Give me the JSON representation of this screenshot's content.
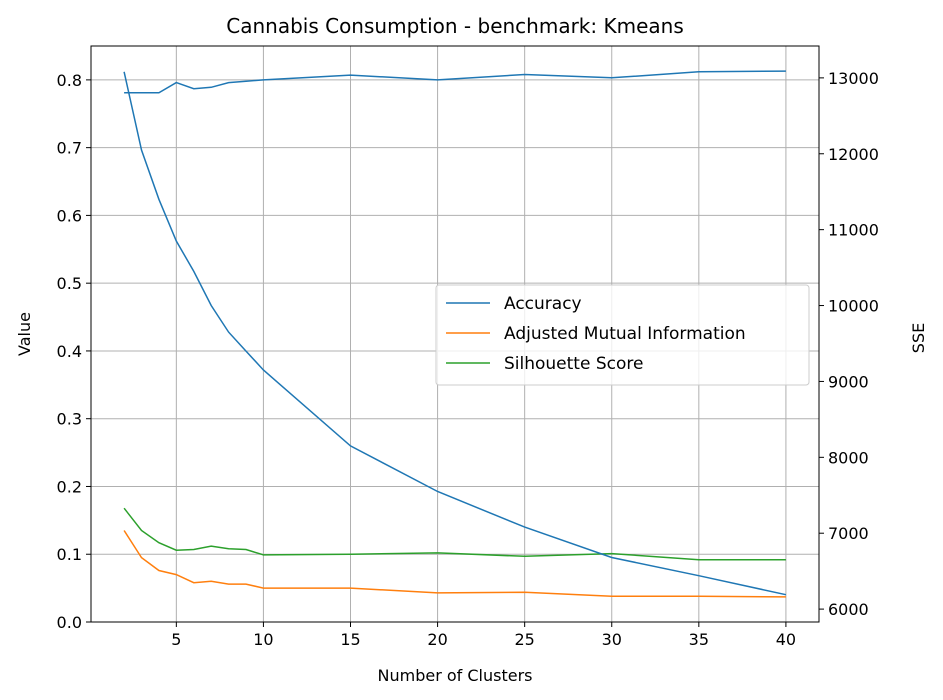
{
  "chart_data": {
    "type": "line",
    "title": "Cannabis Consumption - benchmark: Kmeans",
    "xlabel": "Number of Clusters",
    "ylabel": "Value",
    "y2label": "SSE",
    "xlim": [
      0.1,
      41.9
    ],
    "ylim": [
      0,
      0.85
    ],
    "y2lim": [
      5830,
      13420
    ],
    "x_ticks": [
      5,
      10,
      15,
      20,
      25,
      30,
      35,
      40
    ],
    "y_ticks": [
      0.0,
      0.1,
      0.2,
      0.3,
      0.4,
      0.5,
      0.6,
      0.7,
      0.8
    ],
    "y_tick_labels": [
      "0.0",
      "0.1",
      "0.2",
      "0.3",
      "0.4",
      "0.5",
      "0.6",
      "0.7",
      "0.8"
    ],
    "y2_ticks": [
      6000,
      7000,
      8000,
      9000,
      10000,
      11000,
      12000,
      13000
    ],
    "grid": true,
    "legend_position": "center-right",
    "x": [
      2,
      3,
      4,
      5,
      6,
      7,
      8,
      9,
      10,
      15,
      20,
      25,
      30,
      35,
      40
    ],
    "series": [
      {
        "name": "Accuracy",
        "axis": "left",
        "color": "#1f77b4",
        "in_legend": true,
        "values": [
          0.781,
          0.781,
          0.781,
          0.796,
          0.787,
          0.789,
          0.796,
          0.798,
          0.8,
          0.807,
          0.8,
          0.808,
          0.803,
          0.812,
          0.813
        ]
      },
      {
        "name": "Adjusted Mutual Information",
        "axis": "left",
        "color": "#ff7f0e",
        "in_legend": true,
        "values": [
          0.135,
          0.095,
          0.076,
          0.07,
          0.058,
          0.06,
          0.056,
          0.056,
          0.05,
          0.05,
          0.043,
          0.044,
          0.038,
          0.038,
          0.037
        ]
      },
      {
        "name": "Silhouette Score",
        "axis": "left",
        "color": "#2ca02c",
        "in_legend": true,
        "values": [
          0.168,
          0.135,
          0.117,
          0.106,
          0.107,
          0.112,
          0.108,
          0.107,
          0.099,
          0.1,
          0.102,
          0.097,
          0.101,
          0.092,
          0.092
        ]
      },
      {
        "name": "",
        "axis": "right",
        "color": "#1f77b4",
        "in_legend": false,
        "values": [
          13080,
          12050,
          11400,
          10850,
          10450,
          10000,
          9650,
          9400,
          9150,
          8150,
          7550,
          7080,
          6680,
          6440,
          6190
        ]
      }
    ]
  }
}
